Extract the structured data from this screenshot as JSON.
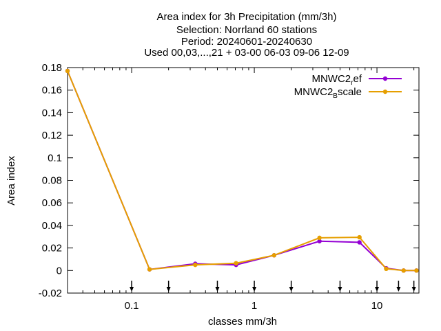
{
  "chart_data": {
    "type": "line",
    "title_lines": [
      "Area index  for 3h Precipitation (mm/3h)",
      "Selection: Norrland     60 stations",
      "Period: 20240601-20240630",
      "Used 00,03,...,21 + 03-00 06-03 09-06 12-09"
    ],
    "xlabel": "classes mm/3h",
    "ylabel": "Area index",
    "x_scale": "log",
    "xlim": [
      0.03,
      22
    ],
    "ylim": [
      -0.02,
      0.18
    ],
    "x_ticks": [
      0.1,
      1,
      10
    ],
    "x_tick_labels": [
      "0.1",
      "1",
      "10"
    ],
    "y_ticks": [
      -0.02,
      0,
      0.02,
      0.04,
      0.06,
      0.08,
      0.1,
      0.12,
      0.14,
      0.16,
      0.18
    ],
    "y_tick_labels": [
      "-0.02",
      "0",
      "0.02",
      "0.04",
      "0.06",
      "0.08",
      "0.1",
      "0.12",
      "0.14",
      "0.16",
      "0.18"
    ],
    "class_limits": [
      0.1,
      0.2,
      0.5,
      1,
      2,
      5,
      10,
      15,
      20
    ],
    "legend_position": "top-right",
    "grid": false,
    "series": [
      {
        "name": "MNWC2_ref",
        "legend_main": "MNWC2",
        "legend_sub": "r",
        "legend_rest": "ef",
        "color": "#9400d3",
        "x": [
          0.03,
          0.14,
          0.33,
          0.71,
          1.45,
          3.4,
          7.2,
          11.9,
          16.5,
          21
        ],
        "values": [
          0.177,
          0.001,
          0.006,
          0.005,
          0.0135,
          0.026,
          0.025,
          0.002,
          0.0,
          0.0
        ]
      },
      {
        "name": "MNWC2_Bscale",
        "legend_main": "MNWC2",
        "legend_sub": "B",
        "legend_rest": "scale",
        "color": "#e69f00",
        "x": [
          0.03,
          0.14,
          0.33,
          0.71,
          1.45,
          3.4,
          7.2,
          11.9,
          16.5,
          21
        ],
        "values": [
          0.177,
          0.001,
          0.005,
          0.0065,
          0.0135,
          0.029,
          0.0295,
          0.0015,
          0.0,
          0.0
        ]
      }
    ]
  }
}
